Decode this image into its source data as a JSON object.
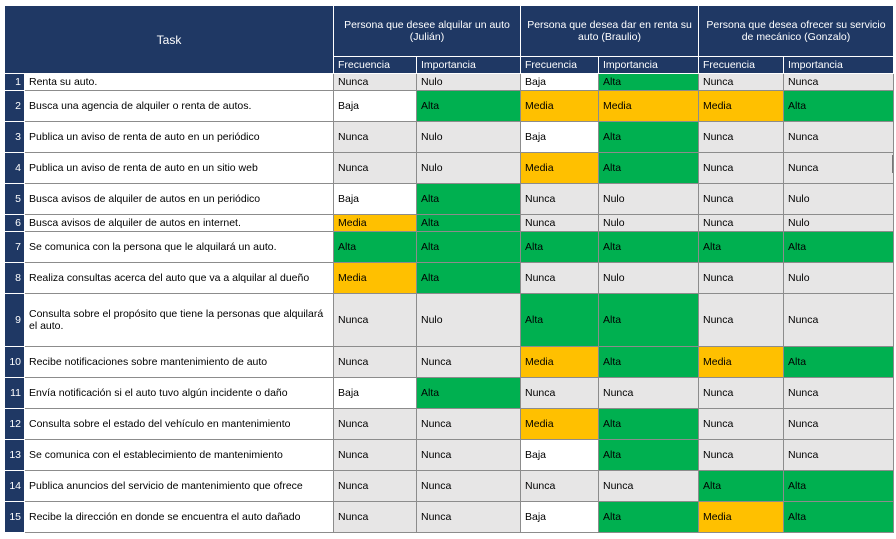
{
  "colors": {
    "header": "#1f3864",
    "gray": "#e7e6e6",
    "green": "#00b050",
    "orange": "#ffc000",
    "white": "#ffffff"
  },
  "header": {
    "task": "Task",
    "personas": [
      "Persona que desee alquilar un auto (Julián)",
      "Persona que desea dar en renta su auto (Braulio)",
      "Persona que desea ofrecer su servicio de mecánico (Gonzalo)"
    ],
    "sub": [
      "Frecuencia",
      "Importancia"
    ]
  },
  "rows": [
    {
      "n": "1",
      "task": "Renta su auto.",
      "cells": [
        [
          "Nunca",
          "gray"
        ],
        [
          "Nulo",
          "gray"
        ],
        [
          "Baja",
          "white"
        ],
        [
          "Alta",
          "green"
        ],
        [
          "Nunca",
          "gray"
        ],
        [
          "Nunca",
          "gray"
        ]
      ]
    },
    {
      "n": "2",
      "task": "Busca una agencia de alquiler o renta de autos.",
      "cells": [
        [
          "Baja",
          "white"
        ],
        [
          "Alta",
          "green"
        ],
        [
          "Media",
          "orange"
        ],
        [
          "Media",
          "orange"
        ],
        [
          "Media",
          "orange"
        ],
        [
          "Alta",
          "green"
        ]
      ]
    },
    {
      "n": "3",
      "task": "Publica un aviso de renta de auto en un periódico",
      "cells": [
        [
          "Nunca",
          "gray"
        ],
        [
          "Nulo",
          "gray"
        ],
        [
          "Baja",
          "white"
        ],
        [
          "Alta",
          "green"
        ],
        [
          "Nunca",
          "gray"
        ],
        [
          "Nunca",
          "gray"
        ]
      ]
    },
    {
      "n": "4",
      "task": "Publica un aviso de renta de auto en un sitio web",
      "cells": [
        [
          "Nunca",
          "gray"
        ],
        [
          "Nulo",
          "gray"
        ],
        [
          "Media",
          "orange"
        ],
        [
          "Alta",
          "green"
        ],
        [
          "Nunca",
          "gray"
        ],
        [
          "Nunca",
          "gray"
        ]
      ]
    },
    {
      "n": "5",
      "task": "Busca avisos de alquiler de autos en un periódico",
      "cells": [
        [
          "Baja",
          "white"
        ],
        [
          "Alta",
          "green"
        ],
        [
          "Nunca",
          "gray"
        ],
        [
          "Nulo",
          "gray"
        ],
        [
          "Nunca",
          "gray"
        ],
        [
          "Nulo",
          "gray"
        ]
      ]
    },
    {
      "n": "6",
      "task": "Busca avisos de alquiler de autos en internet.",
      "cells": [
        [
          "Media",
          "orange"
        ],
        [
          "Alta",
          "green"
        ],
        [
          "Nunca",
          "gray"
        ],
        [
          "Nulo",
          "gray"
        ],
        [
          "Nunca",
          "gray"
        ],
        [
          "Nulo",
          "gray"
        ]
      ]
    },
    {
      "n": "7",
      "task": "Se comunica con la persona que le alquilará un auto.",
      "cells": [
        [
          "Alta",
          "green"
        ],
        [
          "Alta",
          "green"
        ],
        [
          "Alta",
          "green"
        ],
        [
          "Alta",
          "green"
        ],
        [
          "Alta",
          "green"
        ],
        [
          "Alta",
          "green"
        ]
      ]
    },
    {
      "n": "8",
      "task": "Realiza consultas acerca del auto que va a alquilar al dueño",
      "cells": [
        [
          "Media",
          "orange"
        ],
        [
          "Alta",
          "green"
        ],
        [
          "Nunca",
          "gray"
        ],
        [
          "Nulo",
          "gray"
        ],
        [
          "Nunca",
          "gray"
        ],
        [
          "Nulo",
          "gray"
        ]
      ]
    },
    {
      "n": "9",
      "task": "Consulta sobre el propósito que tiene la personas que alquilará el auto.",
      "cells": [
        [
          "Nunca",
          "gray"
        ],
        [
          "Nulo",
          "gray"
        ],
        [
          "Alta",
          "green"
        ],
        [
          "Alta",
          "green"
        ],
        [
          "Nunca",
          "gray"
        ],
        [
          "Nunca",
          "gray"
        ]
      ]
    },
    {
      "n": "10",
      "task": "Recibe notificaciones sobre mantenimiento de auto",
      "cells": [
        [
          "Nunca",
          "gray"
        ],
        [
          "Nunca",
          "gray"
        ],
        [
          "Media",
          "orange"
        ],
        [
          "Alta",
          "green"
        ],
        [
          "Media",
          "orange"
        ],
        [
          "Alta",
          "green"
        ]
      ]
    },
    {
      "n": "11",
      "task": "Envía notificación si el auto tuvo algún incidente o daño",
      "cells": [
        [
          "Baja",
          "white"
        ],
        [
          "Alta",
          "green"
        ],
        [
          "Nunca",
          "gray"
        ],
        [
          "Nunca",
          "gray"
        ],
        [
          "Nunca",
          "gray"
        ],
        [
          "Nunca",
          "gray"
        ]
      ]
    },
    {
      "n": "12",
      "task": "Consulta sobre el estado del vehículo en mantenimiento",
      "cells": [
        [
          "Nunca",
          "gray"
        ],
        [
          "Nunca",
          "gray"
        ],
        [
          "Media",
          "orange"
        ],
        [
          "Alta",
          "green"
        ],
        [
          "Nunca",
          "gray"
        ],
        [
          "Nunca",
          "gray"
        ]
      ]
    },
    {
      "n": "13",
      "task": "Se comunica con el establecimiento de mantenimiento",
      "cells": [
        [
          "Nunca",
          "gray"
        ],
        [
          "Nunca",
          "gray"
        ],
        [
          "Baja",
          "white"
        ],
        [
          "Alta",
          "green"
        ],
        [
          "Nunca",
          "gray"
        ],
        [
          "Nunca",
          "gray"
        ]
      ]
    },
    {
      "n": "14",
      "task": "Publica anuncios del servicio de mantenimiento que ofrece",
      "cells": [
        [
          "Nunca",
          "gray"
        ],
        [
          "Nunca",
          "gray"
        ],
        [
          "Nunca",
          "gray"
        ],
        [
          "Nunca",
          "gray"
        ],
        [
          "Alta",
          "green"
        ],
        [
          "Alta",
          "green"
        ]
      ]
    },
    {
      "n": "15",
      "task": "Recibe la dirección en donde se encuentra el auto dañado",
      "cells": [
        [
          "Nunca",
          "gray"
        ],
        [
          "Nunca",
          "gray"
        ],
        [
          "Baja",
          "white"
        ],
        [
          "Alta",
          "green"
        ],
        [
          "Media",
          "orange"
        ],
        [
          "Alta",
          "green"
        ]
      ]
    }
  ]
}
